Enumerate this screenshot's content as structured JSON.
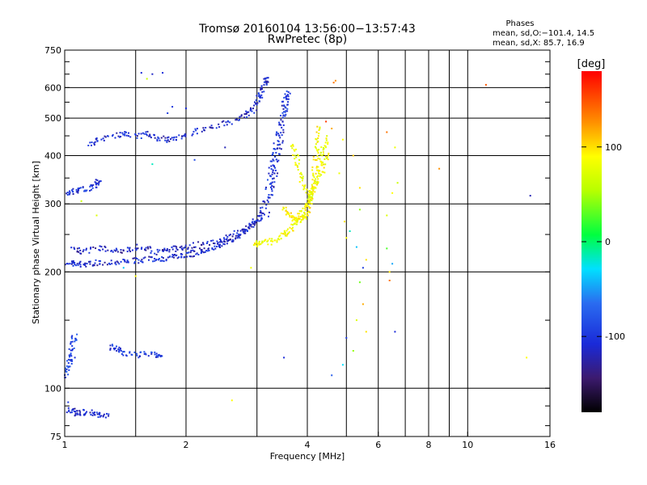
{
  "chart_data": {
    "type": "scatter",
    "title": "Tromsø 20160104 13:56:00−13:57:43",
    "subtitle": "RwPretec (8p)",
    "xlabel": "Frequency [MHz]",
    "ylabel": "Stationary phase Virtual Height [km]",
    "x_scale": "log2",
    "y_scale": "log",
    "xlim": [
      1,
      16
    ],
    "ylim": [
      75,
      750
    ],
    "x_ticks": [
      1,
      2,
      4,
      6,
      8,
      10,
      16
    ],
    "x_tick_labels": [
      "1",
      "2",
      "4",
      "6",
      "8",
      "10",
      "16"
    ],
    "y_ticks": [
      75,
      100,
      200,
      300,
      400,
      500,
      600,
      750
    ],
    "y_tick_labels": [
      "75",
      "100",
      "200",
      "300",
      "400",
      "500",
      "600",
      "750"
    ],
    "grid": true,
    "stats": {
      "heading": "Phases",
      "line_o": "mean, sd,O:−101.4, 14.5",
      "line_x": "mean, sd,X:  85.7, 16.9"
    },
    "colorbar": {
      "label": "[deg]",
      "range": [
        -180,
        180
      ],
      "ticks": [
        100,
        0,
        -100
      ],
      "tick_labels": [
        "100",
        "0",
        "-100"
      ]
    },
    "traces": [
      {
        "name": "o-mode lower layer",
        "phase": -110,
        "points": [
          [
            1.02,
            212
          ],
          [
            1.05,
            210
          ],
          [
            1.1,
            209
          ],
          [
            1.15,
            210
          ],
          [
            1.2,
            211
          ],
          [
            1.3,
            212
          ],
          [
            1.4,
            213
          ],
          [
            1.5,
            214
          ],
          [
            1.6,
            215
          ],
          [
            1.7,
            216
          ],
          [
            1.8,
            217
          ],
          [
            1.9,
            219
          ],
          [
            2.0,
            221
          ],
          [
            2.1,
            224
          ],
          [
            2.2,
            227
          ],
          [
            2.3,
            230
          ],
          [
            2.4,
            234
          ],
          [
            2.5,
            238
          ],
          [
            2.6,
            243
          ],
          [
            2.7,
            249
          ],
          [
            2.8,
            256
          ],
          [
            2.9,
            264
          ],
          [
            3.0,
            275
          ],
          [
            3.1,
            290
          ],
          [
            3.2,
            310
          ],
          [
            3.3,
            340
          ],
          [
            3.35,
            370
          ],
          [
            3.4,
            410
          ],
          [
            3.45,
            460
          ],
          [
            3.5,
            520
          ],
          [
            3.55,
            580
          ]
        ]
      },
      {
        "name": "o-mode lower layer spread",
        "phase": -115,
        "points": [
          [
            1.05,
            228
          ],
          [
            1.1,
            226
          ],
          [
            1.2,
            230
          ],
          [
            1.3,
            228
          ],
          [
            1.4,
            226
          ],
          [
            1.5,
            232
          ],
          [
            1.6,
            230
          ],
          [
            1.7,
            225
          ],
          [
            1.8,
            228
          ],
          [
            1.9,
            230
          ],
          [
            2.0,
            233
          ],
          [
            2.2,
            236
          ],
          [
            2.4,
            240
          ],
          [
            2.6,
            248
          ],
          [
            2.8,
            258
          ],
          [
            3.0,
            268
          ],
          [
            3.2,
            285
          ]
        ]
      },
      {
        "name": "o-mode cusp",
        "phase": -100,
        "points": [
          [
            3.2,
            330
          ],
          [
            3.25,
            360
          ],
          [
            3.3,
            390
          ],
          [
            3.35,
            430
          ],
          [
            3.4,
            470
          ],
          [
            3.5,
            520
          ],
          [
            3.55,
            560
          ],
          [
            3.6,
            590
          ]
        ]
      },
      {
        "name": "o-mode upper layer",
        "phase": -110,
        "points": [
          [
            1.15,
            425
          ],
          [
            1.2,
            440
          ],
          [
            1.3,
            450
          ],
          [
            1.4,
            455
          ],
          [
            1.5,
            448
          ],
          [
            1.6,
            455
          ],
          [
            1.7,
            445
          ],
          [
            1.8,
            438
          ],
          [
            1.9,
            445
          ],
          [
            2.0,
            455
          ],
          [
            2.2,
            468
          ],
          [
            2.4,
            480
          ],
          [
            2.6,
            490
          ],
          [
            2.8,
            505
          ],
          [
            2.9,
            520
          ],
          [
            3.0,
            545
          ],
          [
            3.05,
            570
          ],
          [
            3.1,
            600
          ],
          [
            3.15,
            620
          ],
          [
            3.2,
            640
          ]
        ]
      },
      {
        "name": "x-mode upper branch",
        "phase": 90,
        "points": [
          [
            3.5,
            290
          ],
          [
            3.6,
            282
          ],
          [
            3.7,
            276
          ],
          [
            3.8,
            272
          ],
          [
            3.9,
            275
          ],
          [
            4.0,
            285
          ],
          [
            4.05,
            300
          ],
          [
            4.1,
            325
          ],
          [
            4.15,
            360
          ],
          [
            4.2,
            400
          ],
          [
            4.25,
            440
          ],
          [
            4.3,
            480
          ]
        ]
      },
      {
        "name": "x-mode lower band",
        "phase": 85,
        "points": [
          [
            2.95,
            236
          ],
          [
            3.05,
            237
          ],
          [
            3.2,
            239
          ],
          [
            3.35,
            243
          ],
          [
            3.5,
            250
          ],
          [
            3.6,
            256
          ],
          [
            3.7,
            265
          ],
          [
            3.8,
            275
          ],
          [
            3.9,
            285
          ],
          [
            4.0,
            300
          ],
          [
            4.1,
            315
          ],
          [
            4.2,
            335
          ],
          [
            4.3,
            355
          ],
          [
            4.4,
            380
          ],
          [
            4.5,
            410
          ]
        ]
      },
      {
        "name": "x-mode right edge",
        "phase": 80,
        "points": [
          [
            3.7,
            430
          ],
          [
            3.75,
            400
          ],
          [
            3.8,
            370
          ],
          [
            3.9,
            340
          ],
          [
            4.0,
            320
          ],
          [
            4.1,
            310
          ],
          [
            4.2,
            350
          ],
          [
            4.3,
            390
          ],
          [
            4.4,
            420
          ],
          [
            4.5,
            445
          ]
        ]
      },
      {
        "name": "echo 320 km",
        "phase": -105,
        "points": [
          [
            1.02,
            320
          ],
          [
            1.05,
            322
          ],
          [
            1.1,
            325
          ],
          [
            1.15,
            330
          ],
          [
            1.2,
            338
          ],
          [
            1.22,
            345
          ]
        ]
      },
      {
        "name": "echo 88 km",
        "phase": -110,
        "points": [
          [
            1.02,
            88
          ],
          [
            1.05,
            87
          ],
          [
            1.08,
            86
          ],
          [
            1.12,
            87
          ],
          [
            1.18,
            86
          ],
          [
            1.22,
            85
          ],
          [
            1.28,
            85
          ]
        ]
      },
      {
        "name": "echo 105 km",
        "phase": -95,
        "points": [
          [
            1.01,
            108
          ],
          [
            1.02,
            112
          ],
          [
            1.03,
            118
          ],
          [
            1.04,
            125
          ],
          [
            1.05,
            132
          ],
          [
            1.06,
            138
          ]
        ]
      },
      {
        "name": "echo 125 km",
        "phase": -100,
        "points": [
          [
            1.3,
            128
          ],
          [
            1.35,
            126
          ],
          [
            1.4,
            124
          ],
          [
            1.5,
            122
          ],
          [
            1.6,
            123
          ],
          [
            1.7,
            122
          ],
          [
            1.75,
            123
          ]
        ]
      }
    ],
    "scatter_points": [
      [
        1.55,
        655,
        -110
      ],
      [
        1.65,
        650,
        -115
      ],
      [
        1.75,
        655,
        -110
      ],
      [
        1.6,
        632,
        60
      ],
      [
        1.85,
        535,
        -105
      ],
      [
        2.0,
        530,
        -110
      ],
      [
        1.8,
        515,
        -100
      ],
      [
        4.7,
        625,
        130
      ],
      [
        4.65,
        618,
        140
      ],
      [
        4.45,
        490,
        160
      ],
      [
        4.6,
        470,
        120
      ],
      [
        4.9,
        440,
        90
      ],
      [
        5.2,
        400,
        110
      ],
      [
        4.8,
        360,
        80
      ],
      [
        5.4,
        330,
        100
      ],
      [
        5.4,
        290,
        40
      ],
      [
        4.95,
        270,
        100
      ],
      [
        5.1,
        255,
        -20
      ],
      [
        5.0,
        245,
        90
      ],
      [
        5.3,
        232,
        -40
      ],
      [
        5.6,
        215,
        100
      ],
      [
        5.5,
        205,
        -100
      ],
      [
        5.4,
        188,
        30
      ],
      [
        5.5,
        165,
        120
      ],
      [
        5.3,
        150,
        70
      ],
      [
        5.6,
        140,
        100
      ],
      [
        5.0,
        135,
        -100
      ],
      [
        5.2,
        125,
        40
      ],
      [
        4.9,
        115,
        -30
      ],
      [
        4.6,
        108,
        -80
      ],
      [
        3.5,
        120,
        -110
      ],
      [
        6.3,
        460,
        140
      ],
      [
        6.6,
        420,
        80
      ],
      [
        6.7,
        340,
        60
      ],
      [
        6.5,
        320,
        90
      ],
      [
        6.3,
        280,
        70
      ],
      [
        6.3,
        230,
        20
      ],
      [
        6.5,
        210,
        -50
      ],
      [
        6.4,
        200,
        100
      ],
      [
        6.4,
        190,
        140
      ],
      [
        6.6,
        140,
        -110
      ],
      [
        8.5,
        370,
        130
      ],
      [
        11.1,
        610,
        150
      ],
      [
        14.3,
        315,
        -120
      ],
      [
        14.0,
        120,
        90
      ],
      [
        2.6,
        93,
        90
      ],
      [
        2.9,
        205,
        80
      ],
      [
        1.1,
        305,
        60
      ],
      [
        1.2,
        280,
        70
      ],
      [
        1.4,
        205,
        -40
      ],
      [
        1.5,
        195,
        90
      ],
      [
        1.02,
        92,
        -100
      ],
      [
        1.06,
        120,
        -110
      ],
      [
        1.65,
        380,
        -20
      ],
      [
        2.1,
        390,
        -90
      ],
      [
        2.5,
        420,
        -120
      ]
    ]
  }
}
